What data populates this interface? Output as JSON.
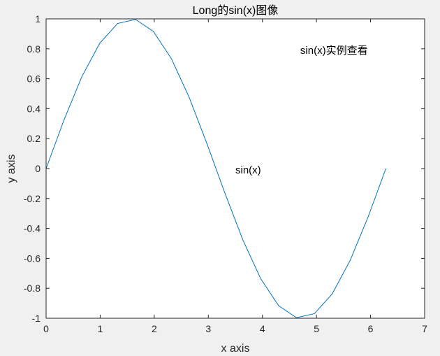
{
  "chart_data": {
    "type": "line",
    "title": "Long的sin(x)图像",
    "xlabel": "x axis",
    "ylabel": "y axis",
    "xlim": [
      0,
      7
    ],
    "ylim": [
      -1,
      1
    ],
    "xticks": [
      0,
      1,
      2,
      3,
      4,
      5,
      6,
      7
    ],
    "yticks": [
      -1,
      -0.8,
      -0.6,
      -0.4,
      -0.2,
      0,
      0.2,
      0.4,
      0.6,
      0.8,
      1
    ],
    "xtick_labels": [
      "0",
      "1",
      "2",
      "3",
      "4",
      "5",
      "6",
      "7"
    ],
    "ytick_labels": [
      "-1",
      "-0.8",
      "-0.6",
      "-0.4",
      "-0.2",
      "0",
      "0.2",
      "0.4",
      "0.6",
      "0.8",
      "1"
    ],
    "grid": false,
    "series": [
      {
        "color": "#0072bd",
        "x": [
          0,
          0.3307,
          0.6614,
          0.9921,
          1.3228,
          1.6535,
          1.9842,
          2.3149,
          2.6456,
          2.9762,
          3.3069,
          3.6376,
          3.9683,
          4.299,
          4.6297,
          4.9604,
          5.2911,
          5.6218,
          5.9525,
          6.2832
        ],
        "y": [
          0,
          0.3247,
          0.6142,
          0.8372,
          0.9694,
          0.9966,
          0.9158,
          0.7357,
          0.4759,
          0.1646,
          -0.1646,
          -0.4759,
          -0.7357,
          -0.9158,
          -0.9966,
          -0.9694,
          -0.8372,
          -0.6142,
          -0.3247,
          0
        ]
      }
    ],
    "annotations": [
      {
        "text": "sin(x)实例查看",
        "x": 4.7,
        "y": 0.79
      },
      {
        "text": "sin(x)",
        "x": 3.5,
        "y": -0.01
      }
    ]
  }
}
